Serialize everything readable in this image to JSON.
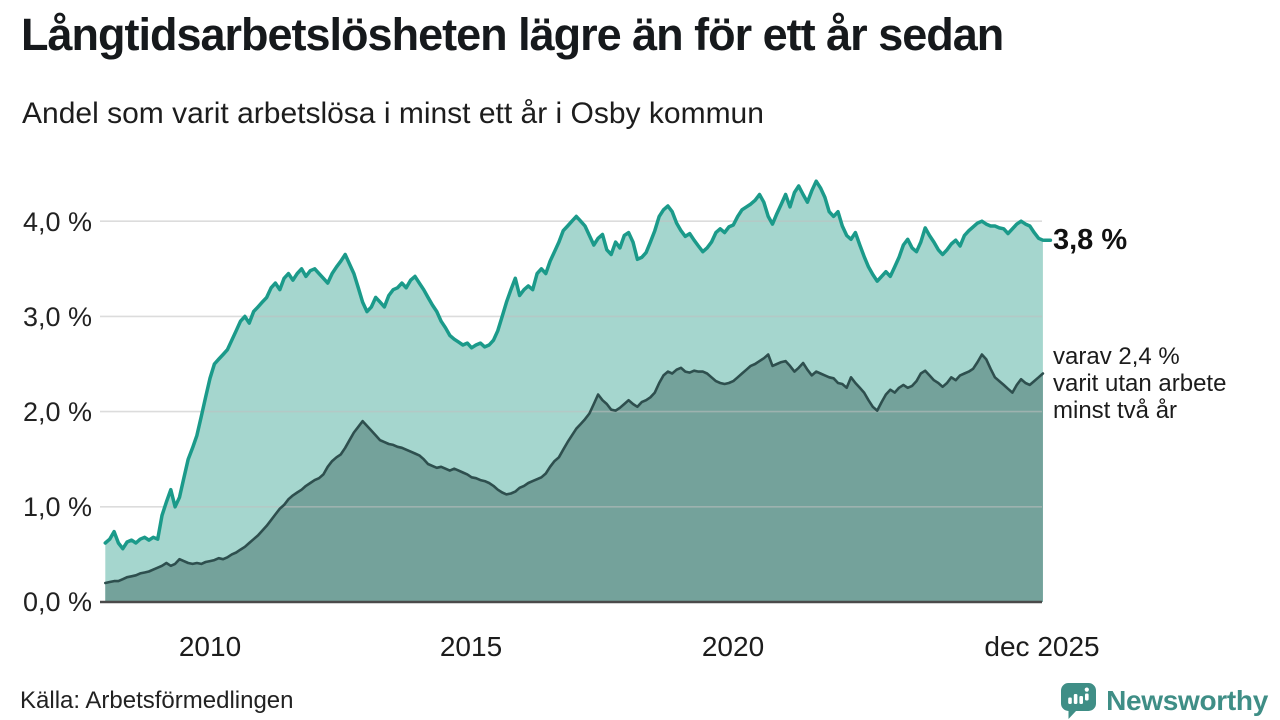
{
  "header": {
    "title": "Långtidsarbetslösheten lägre än för ett år sedan",
    "subtitle": "Andel som varit arbetslösa i minst ett år i Osby kommun"
  },
  "axes": {
    "y_ticks": [
      "4,0 %",
      "3,0 %",
      "2,0 %",
      "1,0 %",
      "0,0 %"
    ],
    "x_ticks": [
      "2010",
      "2015",
      "2020",
      "dec 2025"
    ]
  },
  "annotations": {
    "primary_end_label": "3,8 %",
    "secondary_end_label_lines": [
      "varav 2,4 %",
      "varit utan arbete",
      "minst två år"
    ]
  },
  "footer": {
    "source": "Källa: Arbetsförmedlingen",
    "brand": "Newsworthy"
  },
  "colors": {
    "line_one_year": "#1b9a8a",
    "fill_one_year": "#a5d6ce",
    "line_two_year": "#2e4f4e",
    "fill_two_year": "#74a29b",
    "gridline": "#bfbfbf",
    "axis_line": "#4a4a4a",
    "brand_teal": "#3f8e86"
  },
  "chart_data": {
    "type": "area",
    "title": "Långtidsarbetslösheten lägre än för ett år sedan",
    "subtitle": "Andel som varit arbetslösa i minst ett år i Osby kommun",
    "unit": "percent",
    "x_interval": "monthly",
    "x_start_year": 2008,
    "x_end_label": "dec 2025",
    "x_tick_years": [
      2010,
      2015,
      2020,
      2025.92
    ],
    "ylim": [
      0,
      4.6
    ],
    "y_gridlines": [
      1,
      2,
      3,
      4
    ],
    "grid": true,
    "legend_position": "end-of-line-labels",
    "series": [
      {
        "name": "Andel som varit arbetslösa i minst ett år",
        "end_value": 3.8,
        "end_label": "3,8 %",
        "values": [
          0.62,
          0.66,
          0.74,
          0.62,
          0.56,
          0.63,
          0.65,
          0.62,
          0.66,
          0.68,
          0.65,
          0.68,
          0.66,
          0.91,
          1.05,
          1.18,
          1.0,
          1.1,
          1.3,
          1.5,
          1.62,
          1.75,
          1.95,
          2.15,
          2.35,
          2.5,
          2.55,
          2.6,
          2.65,
          2.75,
          2.85,
          2.95,
          3.0,
          2.93,
          3.05,
          3.1,
          3.15,
          3.2,
          3.3,
          3.35,
          3.28,
          3.4,
          3.45,
          3.38,
          3.45,
          3.5,
          3.42,
          3.48,
          3.5,
          3.45,
          3.4,
          3.35,
          3.45,
          3.52,
          3.58,
          3.65,
          3.55,
          3.45,
          3.3,
          3.15,
          3.05,
          3.1,
          3.2,
          3.15,
          3.1,
          3.22,
          3.28,
          3.3,
          3.35,
          3.3,
          3.38,
          3.42,
          3.35,
          3.28,
          3.2,
          3.12,
          3.05,
          2.95,
          2.88,
          2.8,
          2.76,
          2.73,
          2.7,
          2.72,
          2.67,
          2.7,
          2.72,
          2.68,
          2.7,
          2.75,
          2.85,
          3.0,
          3.15,
          3.28,
          3.4,
          3.22,
          3.28,
          3.32,
          3.28,
          3.45,
          3.5,
          3.45,
          3.58,
          3.68,
          3.78,
          3.9,
          3.95,
          4.0,
          4.05,
          4.0,
          3.95,
          3.85,
          3.75,
          3.82,
          3.86,
          3.7,
          3.65,
          3.78,
          3.72,
          3.85,
          3.88,
          3.78,
          3.6,
          3.62,
          3.67,
          3.78,
          3.9,
          4.05,
          4.12,
          4.16,
          4.1,
          3.98,
          3.9,
          3.84,
          3.87,
          3.8,
          3.74,
          3.68,
          3.72,
          3.78,
          3.88,
          3.92,
          3.88,
          3.94,
          3.96,
          4.05,
          4.12,
          4.15,
          4.18,
          4.22,
          4.28,
          4.2,
          4.05,
          3.97,
          4.08,
          4.18,
          4.28,
          4.15,
          4.3,
          4.37,
          4.28,
          4.2,
          4.32,
          4.42,
          4.35,
          4.25,
          4.1,
          4.05,
          4.1,
          3.95,
          3.85,
          3.81,
          3.88,
          3.75,
          3.63,
          3.52,
          3.44,
          3.37,
          3.42,
          3.47,
          3.42,
          3.52,
          3.62,
          3.75,
          3.81,
          3.72,
          3.68,
          3.78,
          3.93,
          3.85,
          3.78,
          3.7,
          3.65,
          3.7,
          3.76,
          3.8,
          3.74,
          3.85,
          3.9,
          3.94,
          3.98,
          4.0,
          3.97,
          3.95,
          3.95,
          3.93,
          3.92,
          3.87,
          3.92,
          3.97,
          4.0,
          3.97,
          3.95,
          3.88,
          3.82,
          3.8
        ]
      },
      {
        "name": "varav varit utan arbete minst två år",
        "end_value": 2.4,
        "end_label": "varav 2,4 % varit utan arbete minst två år",
        "values": [
          0.2,
          0.21,
          0.22,
          0.22,
          0.24,
          0.26,
          0.27,
          0.28,
          0.3,
          0.31,
          0.32,
          0.34,
          0.36,
          0.38,
          0.41,
          0.38,
          0.4,
          0.45,
          0.43,
          0.41,
          0.4,
          0.41,
          0.4,
          0.42,
          0.43,
          0.44,
          0.46,
          0.45,
          0.47,
          0.5,
          0.52,
          0.55,
          0.58,
          0.62,
          0.66,
          0.7,
          0.75,
          0.8,
          0.86,
          0.92,
          0.98,
          1.02,
          1.08,
          1.12,
          1.15,
          1.18,
          1.22,
          1.25,
          1.28,
          1.3,
          1.34,
          1.42,
          1.48,
          1.52,
          1.55,
          1.62,
          1.7,
          1.78,
          1.84,
          1.9,
          1.85,
          1.8,
          1.75,
          1.7,
          1.68,
          1.66,
          1.65,
          1.63,
          1.62,
          1.6,
          1.58,
          1.56,
          1.54,
          1.5,
          1.45,
          1.43,
          1.41,
          1.42,
          1.4,
          1.38,
          1.4,
          1.38,
          1.36,
          1.34,
          1.31,
          1.3,
          1.28,
          1.27,
          1.25,
          1.22,
          1.18,
          1.15,
          1.13,
          1.14,
          1.16,
          1.2,
          1.22,
          1.25,
          1.27,
          1.29,
          1.31,
          1.35,
          1.42,
          1.48,
          1.52,
          1.6,
          1.68,
          1.75,
          1.82,
          1.87,
          1.92,
          1.98,
          2.08,
          2.18,
          2.12,
          2.08,
          2.02,
          2.01,
          2.04,
          2.08,
          2.12,
          2.08,
          2.05,
          2.1,
          2.12,
          2.15,
          2.2,
          2.3,
          2.38,
          2.42,
          2.4,
          2.44,
          2.46,
          2.42,
          2.41,
          2.43,
          2.42,
          2.42,
          2.4,
          2.36,
          2.32,
          2.3,
          2.29,
          2.3,
          2.32,
          2.36,
          2.4,
          2.44,
          2.48,
          2.5,
          2.53,
          2.56,
          2.6,
          2.48,
          2.5,
          2.52,
          2.53,
          2.48,
          2.42,
          2.46,
          2.51,
          2.44,
          2.38,
          2.42,
          2.4,
          2.38,
          2.36,
          2.35,
          2.3,
          2.29,
          2.25,
          2.36,
          2.3,
          2.25,
          2.2,
          2.12,
          2.05,
          2.01,
          2.1,
          2.18,
          2.23,
          2.2,
          2.25,
          2.28,
          2.25,
          2.27,
          2.32,
          2.4,
          2.43,
          2.38,
          2.33,
          2.3,
          2.26,
          2.3,
          2.36,
          2.33,
          2.38,
          2.4,
          2.42,
          2.45,
          2.52,
          2.6,
          2.55,
          2.45,
          2.36,
          2.32,
          2.28,
          2.24,
          2.2,
          2.28,
          2.34,
          2.3,
          2.28,
          2.32,
          2.36,
          2.4
        ]
      }
    ]
  }
}
